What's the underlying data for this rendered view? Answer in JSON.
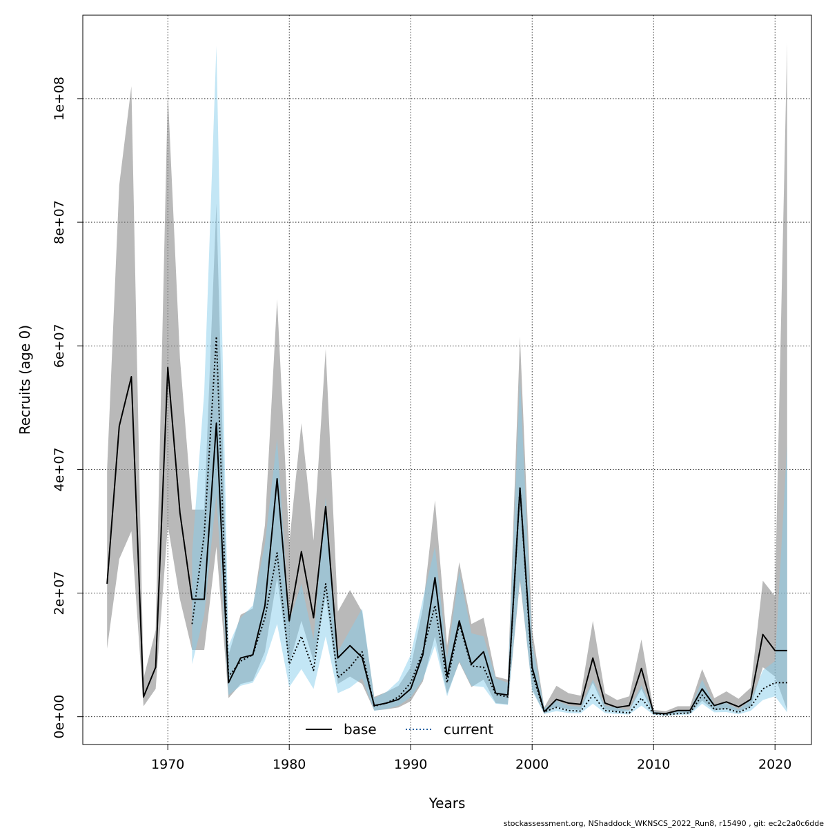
{
  "chart_data": {
    "type": "line",
    "xlabel": "Years",
    "ylabel": "Recruits (age 0)",
    "xlim": [
      1963,
      2023
    ],
    "ylim": [
      -4500000,
      113500000
    ],
    "x_ticks": [
      1970,
      1980,
      1990,
      2000,
      2010,
      2020
    ],
    "y_ticks": [
      0,
      20000000,
      40000000,
      60000000,
      80000000,
      100000000
    ],
    "y_tick_labels": [
      "0e+00",
      "2e+07",
      "4e+07",
      "6e+07",
      "8e+07",
      "1e+08"
    ],
    "grid": true,
    "legend_position": "bottom",
    "footer": "stockassessment.org, NShaddock_WKNSCS_2022_Run8, r15490 , git: ec2c2a0c6dde",
    "colors": {
      "base_band": "#7f7f7f",
      "current_band": "#87ceeb",
      "base_line": "#000000",
      "current_line": "#000000",
      "current_legend_line": "#1f5fa0"
    },
    "series": [
      {
        "name": "base",
        "line_style": "solid",
        "band_opacity": 0.55,
        "years": [
          1965,
          1966,
          1967,
          1968,
          1969,
          1970,
          1971,
          1972,
          1973,
          1974,
          1975,
          1976,
          1977,
          1978,
          1979,
          1980,
          1981,
          1982,
          1983,
          1984,
          1985,
          1986,
          1987,
          1988,
          1989,
          1990,
          1991,
          1992,
          1993,
          1994,
          1995,
          1996,
          1997,
          1998,
          1999,
          2000,
          2001,
          2002,
          2003,
          2004,
          2005,
          2006,
          2007,
          2008,
          2009,
          2010,
          2011,
          2012,
          2013,
          2014,
          2015,
          2016,
          2017,
          2018,
          2019,
          2020,
          2021
        ],
        "values": [
          21500000,
          47000000,
          55000000,
          3200000,
          8000000,
          56500000,
          33000000,
          19000000,
          19000000,
          47500000,
          5500000,
          9500000,
          10000000,
          18000000,
          38500000,
          15500000,
          26700000,
          16000000,
          34000000,
          9500000,
          11500000,
          9600000,
          1800000,
          2200000,
          2800000,
          4500000,
          10000000,
          22500000,
          6500000,
          15500000,
          8500000,
          10500000,
          3800000,
          3500000,
          37000000,
          8000000,
          800000,
          2800000,
          2200000,
          2000000,
          9500000,
          2200000,
          1500000,
          1800000,
          7800000,
          600000,
          500000,
          1000000,
          1000000,
          4500000,
          1800000,
          2400000,
          1600000,
          2800000,
          13300000,
          10700000,
          10700000
        ],
        "lower": [
          11000000,
          25500000,
          30000000,
          1700000,
          4500000,
          31000000,
          19000000,
          10800000,
          10800000,
          27500000,
          3000000,
          5300000,
          5800000,
          10500000,
          22500000,
          8500000,
          15500000,
          9000000,
          19500000,
          5300000,
          6500000,
          5300000,
          1000000,
          1200000,
          1500000,
          2500000,
          5700000,
          13000000,
          3700000,
          8800000,
          4800000,
          6000000,
          2200000,
          2000000,
          22000000,
          4500000,
          450000,
          1600000,
          1200000,
          1100000,
          5500000,
          1200000,
          850000,
          1000000,
          4500000,
          350000,
          280000,
          550000,
          550000,
          2600000,
          1000000,
          1300000,
          900000,
          1600000,
          8000000,
          6500000,
          1100000
        ],
        "upper": [
          40000000,
          86000000,
          102000000,
          6200000,
          14000000,
          101000000,
          58000000,
          33500000,
          33500000,
          83000000,
          10000000,
          16500000,
          17500000,
          31000000,
          67500000,
          28000000,
          47500000,
          28500000,
          59500000,
          17000000,
          20500000,
          17000000,
          3200000,
          4000000,
          5000000,
          8000000,
          17500000,
          35000000,
          11500000,
          25000000,
          15000000,
          16000000,
          6500000,
          6000000,
          61500000,
          14000000,
          1500000,
          5000000,
          3800000,
          3400000,
          15500000,
          3800000,
          2700000,
          3300000,
          12500000,
          1100000,
          900000,
          1700000,
          1700000,
          7700000,
          3000000,
          4100000,
          2900000,
          4700000,
          22000000,
          19500000,
          109000000
        ]
      },
      {
        "name": "current",
        "line_style": "dotted",
        "band_opacity": 0.5,
        "years": [
          1972,
          1973,
          1974,
          1975,
          1976,
          1977,
          1978,
          1979,
          1980,
          1981,
          1982,
          1983,
          1984,
          1985,
          1986,
          1987,
          1988,
          1989,
          1990,
          1991,
          1992,
          1993,
          1994,
          1995,
          1996,
          1997,
          1998,
          1999,
          2000,
          2001,
          2002,
          2003,
          2004,
          2005,
          2006,
          2007,
          2008,
          2009,
          2010,
          2011,
          2012,
          2013,
          2014,
          2015,
          2016,
          2017,
          2018,
          2019,
          2020,
          2021
        ],
        "values": [
          15000000,
          29500000,
          61500000,
          6500000,
          9000000,
          10000000,
          16000000,
          26500000,
          8500000,
          13000000,
          7500000,
          21500000,
          6300000,
          8000000,
          10500000,
          1700000,
          2200000,
          3200000,
          5500000,
          10500000,
          18000000,
          5500000,
          15000000,
          8200000,
          8000000,
          3600000,
          3200000,
          37000000,
          7000000,
          800000,
          1500000,
          1000000,
          900000,
          3500000,
          1000000,
          800000,
          600000,
          3000000,
          500000,
          300000,
          500000,
          600000,
          3500000,
          1200000,
          1300000,
          700000,
          1600000,
          4500000,
          5500000,
          5500000
        ],
        "lower": [
          8500000,
          16500000,
          36000000,
          3500000,
          5000000,
          5500000,
          9000000,
          15000000,
          4800000,
          7700000,
          4500000,
          13000000,
          3800000,
          4700000,
          6200000,
          950000,
          1250000,
          1800000,
          3100000,
          6000000,
          11500000,
          3300000,
          9000000,
          5000000,
          4800000,
          2100000,
          1900000,
          22500000,
          4200000,
          450000,
          900000,
          600000,
          550000,
          2100000,
          600000,
          450000,
          350000,
          1800000,
          280000,
          160000,
          300000,
          350000,
          2100000,
          700000,
          750000,
          400000,
          950000,
          2700000,
          3300000,
          700000
        ],
        "upper": [
          26500000,
          52500000,
          108500000,
          11500000,
          16000000,
          18000000,
          28000000,
          45000000,
          15500000,
          21500000,
          12500000,
          35500000,
          10500000,
          14000000,
          17500000,
          3000000,
          4000000,
          5800000,
          10000000,
          19000000,
          27500000,
          9500000,
          23500000,
          13500000,
          13000000,
          6200000,
          5500000,
          55000000,
          12000000,
          1400000,
          2600000,
          1800000,
          1600000,
          6000000,
          1800000,
          1400000,
          1100000,
          5100000,
          850000,
          550000,
          850000,
          1000000,
          6000000,
          2000000,
          2200000,
          1200000,
          2700000,
          7500000,
          9000000,
          44000000
        ]
      }
    ]
  }
}
